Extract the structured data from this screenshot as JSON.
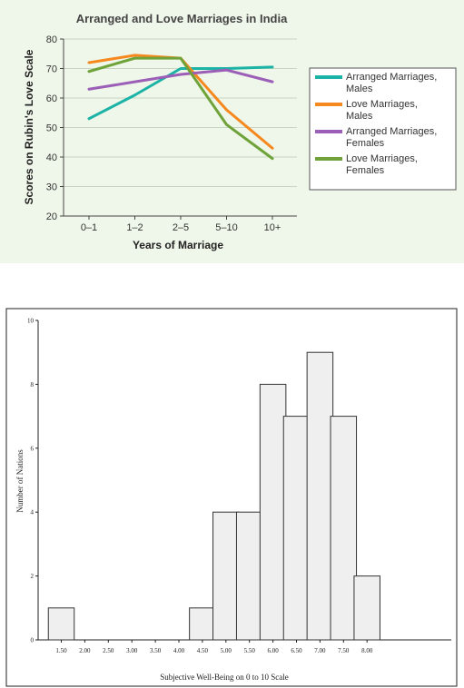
{
  "chart_data": [
    {
      "type": "line",
      "title": "Arranged and Love Marriages in India",
      "xlabel": "Years of Marriage",
      "ylabel": "Scores on Rubin's Love Scale",
      "categories": [
        "0–1",
        "1–2",
        "2–5",
        "5–10",
        "10+"
      ],
      "ylim": [
        20,
        80
      ],
      "yticks": [
        20,
        30,
        40,
        50,
        60,
        70,
        80
      ],
      "grid": true,
      "legend_position": "right",
      "series": [
        {
          "name": "Arranged Marriages, Males",
          "color": "#1bb3a6",
          "values": [
            53,
            61,
            70,
            70,
            70.5
          ]
        },
        {
          "name": "Love Marriages, Males",
          "color": "#f5891f",
          "values": [
            72,
            74.5,
            73.5,
            56,
            43
          ]
        },
        {
          "name": "Arranged Marriages, Females",
          "color": "#9b5fb8",
          "values": [
            63,
            65.5,
            68,
            69.5,
            65.5
          ]
        },
        {
          "name": "Love Marriages, Females",
          "color": "#6fa33a",
          "values": [
            69,
            73.5,
            73.5,
            51,
            39.5
          ]
        }
      ]
    },
    {
      "type": "bar",
      "title": "",
      "xlabel": "Subjective Well-Being on 0 to 10 Scale",
      "ylabel": "Number of Nations",
      "categories": [
        "1.50",
        "2.00",
        "2.50",
        "3.00",
        "3.50",
        "4.00",
        "4.50",
        "5.00",
        "5.50",
        "6.00",
        "6.50",
        "7.00",
        "7.50",
        "8.00"
      ],
      "values": [
        1,
        0,
        0,
        0,
        0,
        0,
        1,
        4,
        4,
        8,
        7,
        9,
        7,
        2
      ],
      "ylim": [
        0,
        10
      ],
      "yticks": [
        0,
        2,
        4,
        6,
        8,
        10
      ],
      "grid": false
    }
  ]
}
